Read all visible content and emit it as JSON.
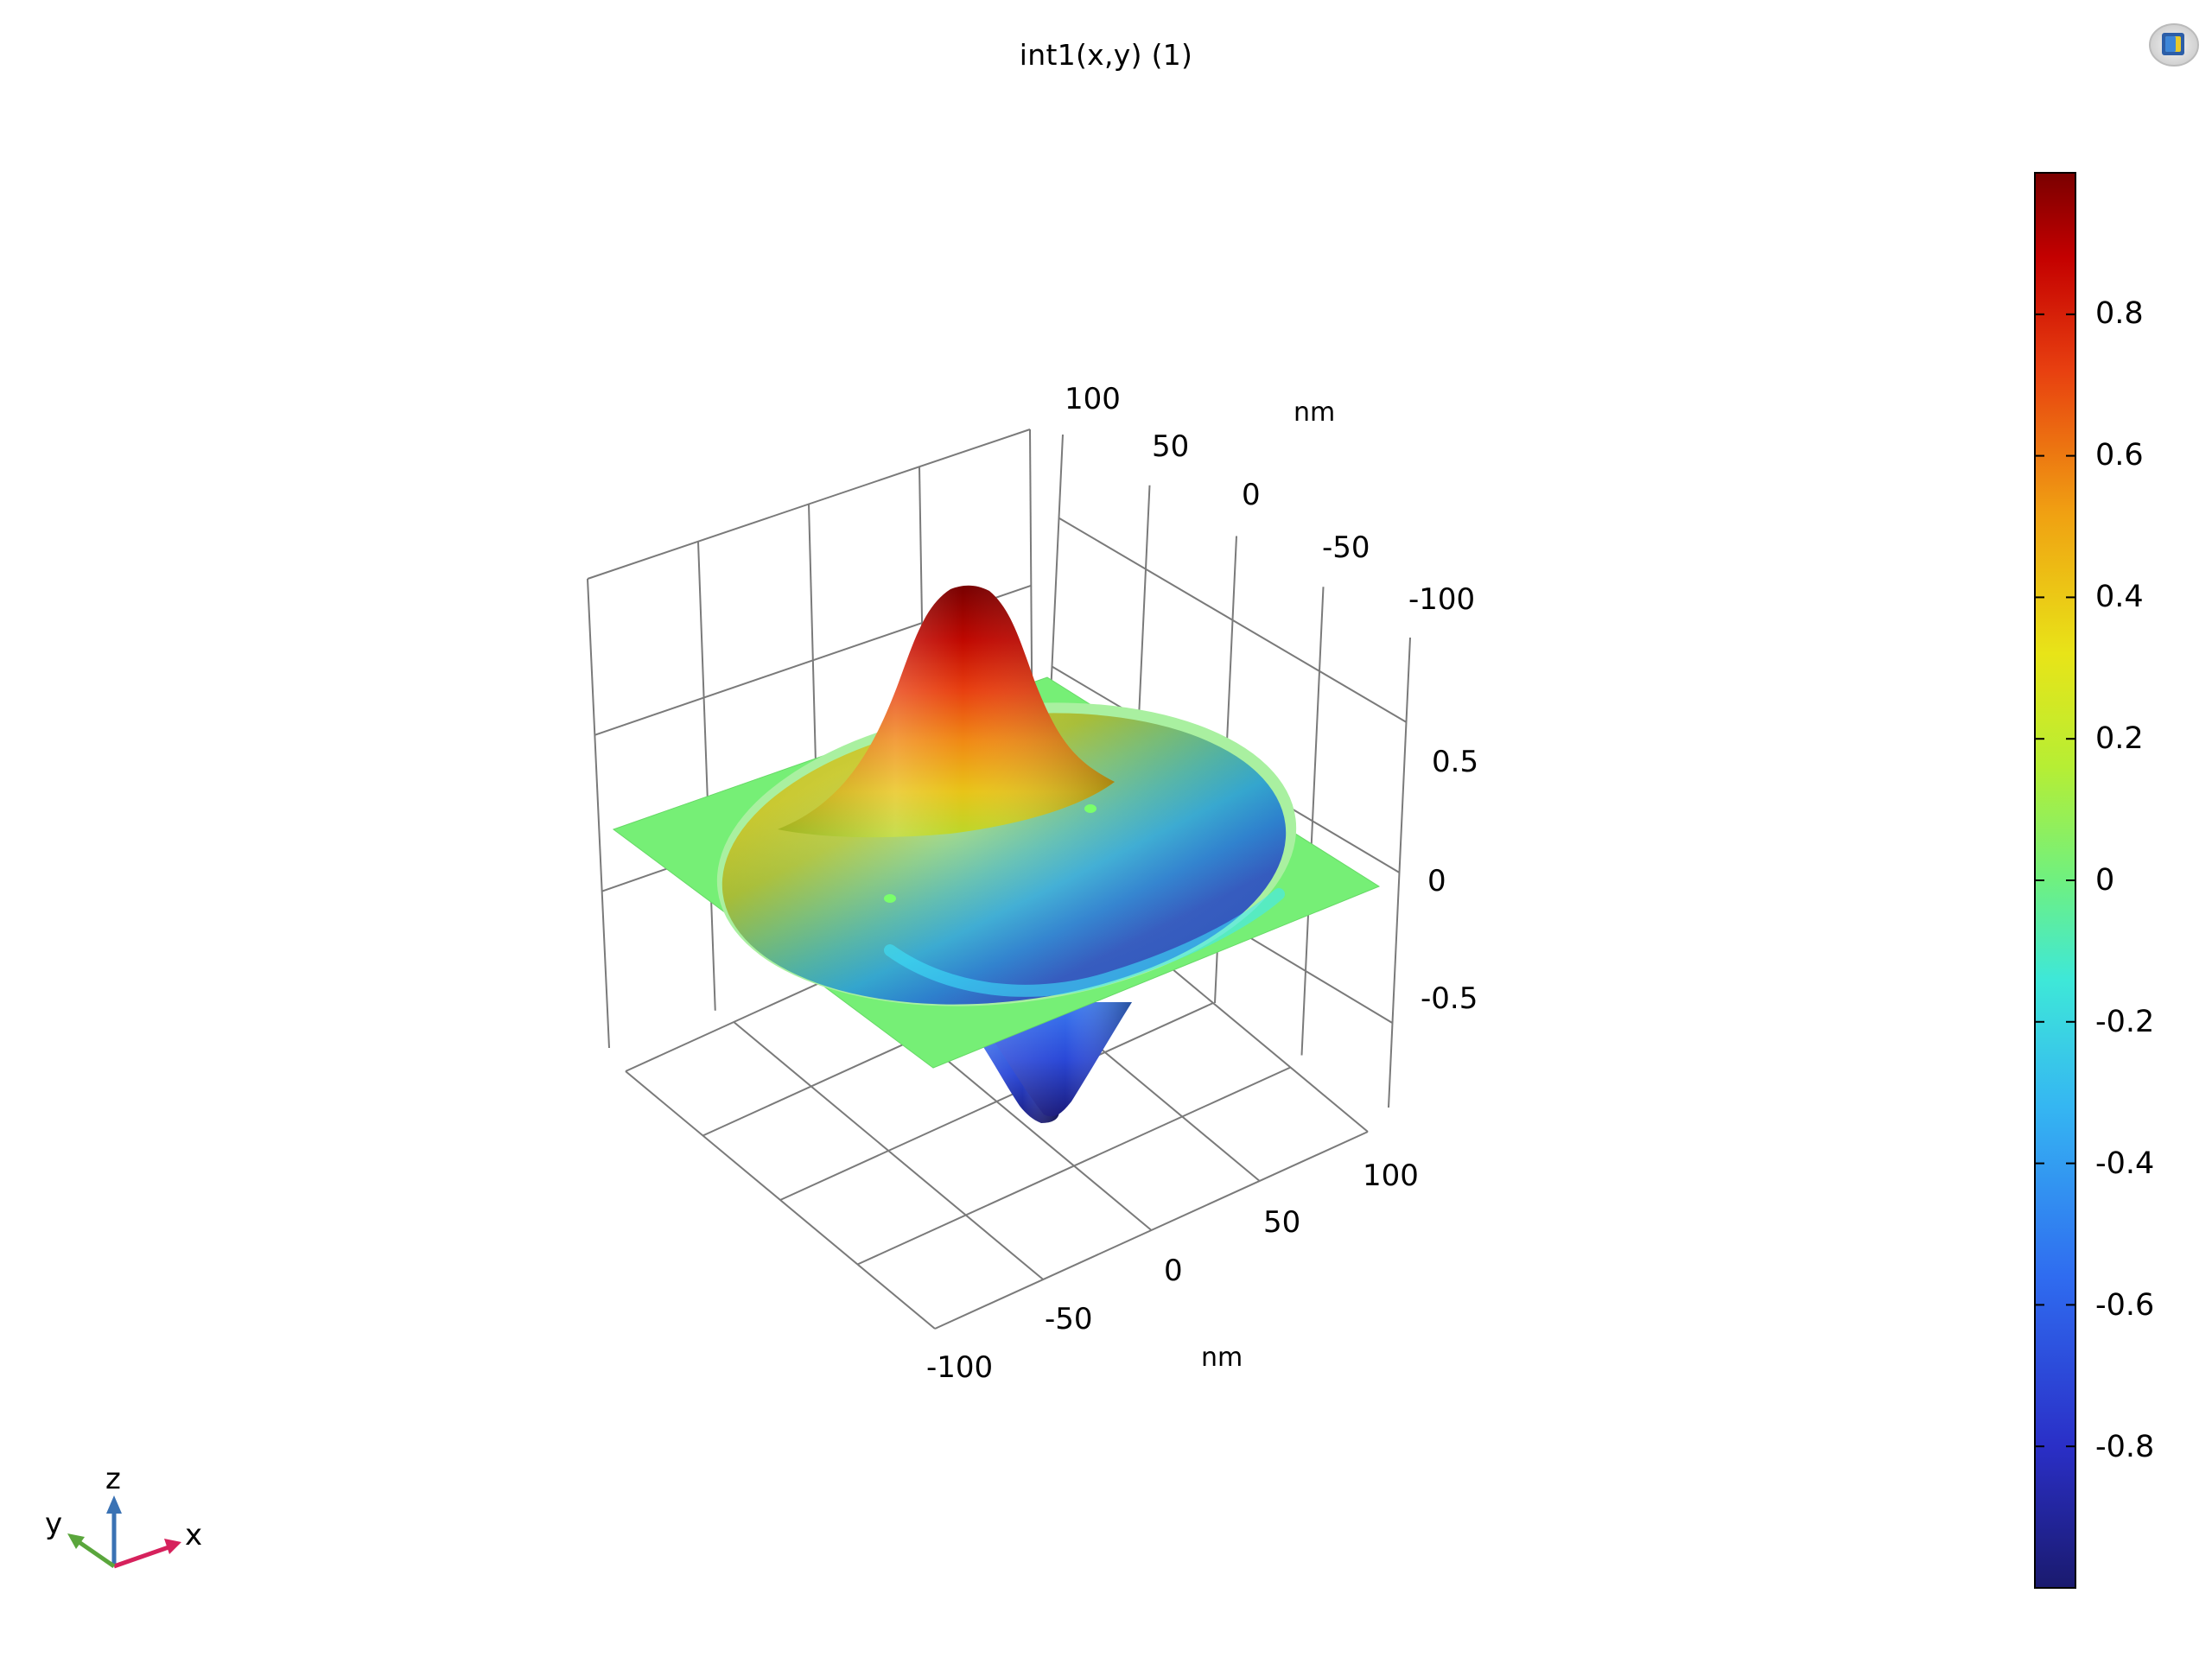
{
  "chart_data": {
    "type": "surface3d",
    "title": "int1(x,y) (1)",
    "function": "int1(x,y)",
    "x_unit": "nm",
    "y_unit": "nm",
    "x_range": [
      -100,
      100
    ],
    "y_range": [
      -100,
      100
    ],
    "z_range": [
      -1,
      1
    ],
    "x_ticks": [
      "-100",
      "-50",
      "0",
      "50",
      "100"
    ],
    "y_ticks": [
      "100",
      "50",
      "0",
      "-50",
      "-100"
    ],
    "z_ticks": [
      "0.5",
      "0",
      "-0.5"
    ],
    "grid": true,
    "peak": {
      "x": -22,
      "y": 22,
      "value": 0.99
    },
    "trough": {
      "x": 22,
      "y": -22,
      "value": -0.99
    },
    "support_radius": 55,
    "colorbar": {
      "colormap": "rainbow",
      "range": [
        -1,
        1
      ],
      "ticks": [
        "0.8",
        "0.6",
        "0.4",
        "0.2",
        "0",
        "-0.2",
        "-0.4",
        "-0.6",
        "-0.8"
      ],
      "placement": "right"
    }
  },
  "axis_triad": {
    "x": "x",
    "y": "y",
    "z": "z"
  },
  "icons": {
    "view": "graphics-view-icon"
  },
  "colors": {
    "x_axis": "#d6215c",
    "y_axis": "#5aa63c",
    "z_axis": "#3a72b4",
    "grid": "#7a7a7a"
  }
}
